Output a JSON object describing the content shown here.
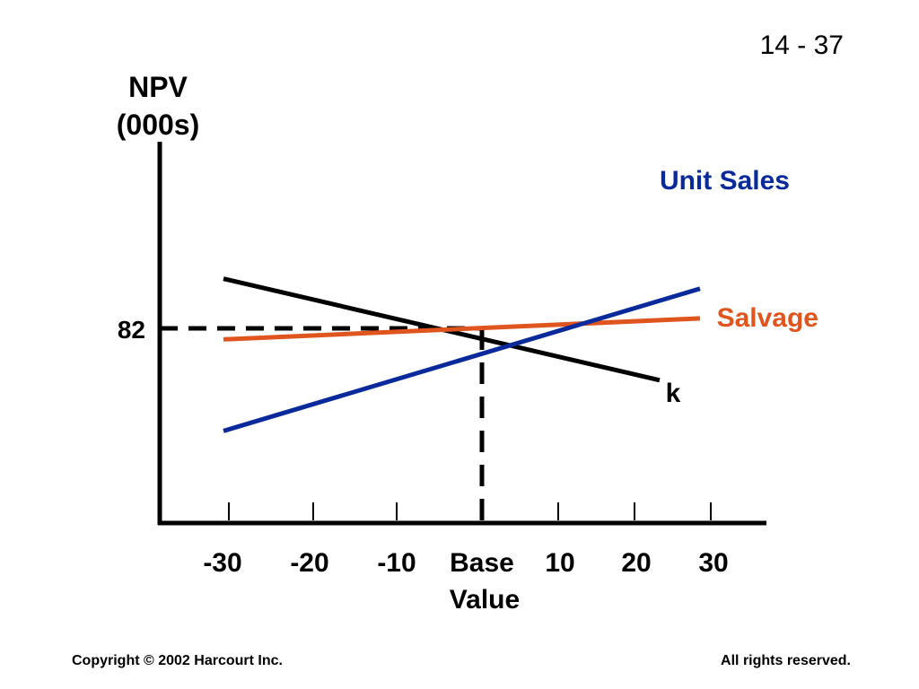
{
  "slide": {
    "page_number": "14 - 37",
    "footer_left": "Copyright © 2002 Harcourt Inc.",
    "footer_right": "All rights reserved."
  },
  "chart_data": {
    "type": "line",
    "ylabel_line1": "NPV",
    "ylabel_line2": "(000s)",
    "x_ticks": [
      "-30",
      "-20",
      "-10",
      "Base",
      "10",
      "20",
      "30"
    ],
    "x_tick_values": [
      -30,
      -20,
      -10,
      0,
      10,
      20,
      30
    ],
    "base_label_line2": "Value",
    "xlim": [
      -39,
      37
    ],
    "reference": {
      "x": 0,
      "y": 82,
      "y_label": "82"
    },
    "series": [
      {
        "name": "Unit Sales",
        "color": "#0a2a9c",
        "x": [
          -32,
          27
        ],
        "y": [
          -11,
          118
        ]
      },
      {
        "name": "Salvage",
        "color": "#e0541e",
        "x": [
          -32,
          27
        ],
        "y": [
          72,
          91
        ]
      },
      {
        "name": "k",
        "color": "#000000",
        "x": [
          -32,
          22
        ],
        "y": [
          127,
          35
        ]
      }
    ],
    "grid": false,
    "legend": "labels at line ends"
  }
}
